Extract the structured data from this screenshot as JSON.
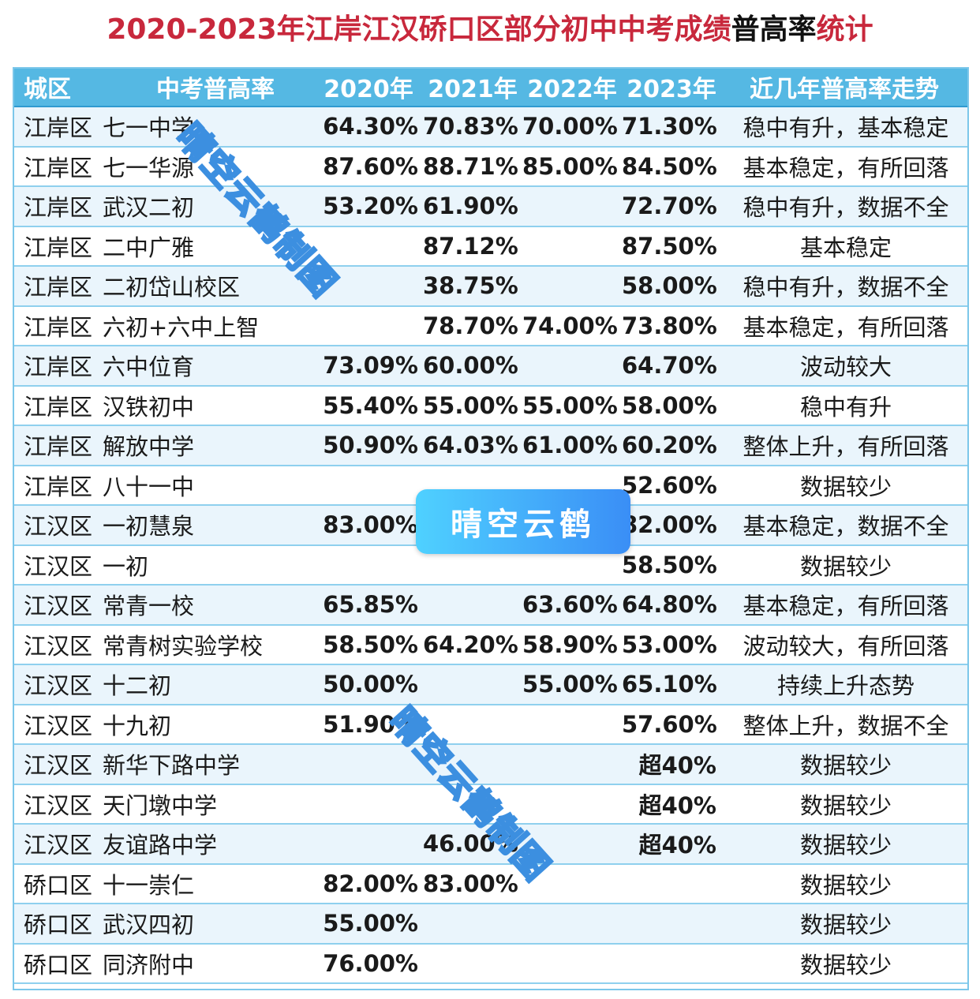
{
  "title": {
    "part1": "2020-2023年江岸江汉硚口区部分初中中考成绩",
    "part2": "普高率",
    "part3": "统计"
  },
  "headers": {
    "district": "城区",
    "school": "中考普高率",
    "y2020": "2020年",
    "y2021": "2021年",
    "y2022": "2022年",
    "y2023": "2023年",
    "trend": "近几年普高率走势"
  },
  "rows": [
    {
      "district": "江岸区",
      "school": "七一中学",
      "y2020": "64.30%",
      "y2021": "70.83%",
      "y2022": "70.00%",
      "y2023": "71.30%",
      "trend": "稳中有升，基本稳定"
    },
    {
      "district": "江岸区",
      "school": "七一华源",
      "y2020": "87.60%",
      "y2021": "88.71%",
      "y2022": "85.00%",
      "y2023": "84.50%",
      "trend": "基本稳定，有所回落"
    },
    {
      "district": "江岸区",
      "school": "武汉二初",
      "y2020": "53.20%",
      "y2021": "61.90%",
      "y2022": "",
      "y2023": "72.70%",
      "trend": "稳中有升，数据不全"
    },
    {
      "district": "江岸区",
      "school": "二中广雅",
      "y2020": "",
      "y2021": "87.12%",
      "y2022": "",
      "y2023": "87.50%",
      "trend": "基本稳定"
    },
    {
      "district": "江岸区",
      "school": "二初岱山校区",
      "y2020": "",
      "y2021": "38.75%",
      "y2022": "",
      "y2023": "58.00%",
      "trend": "稳中有升，数据不全"
    },
    {
      "district": "江岸区",
      "school": "六初+六中上智",
      "y2020": "",
      "y2021": "78.70%",
      "y2022": "74.00%",
      "y2023": "73.80%",
      "trend": "基本稳定，有所回落"
    },
    {
      "district": "江岸区",
      "school": "六中位育",
      "y2020": "73.09%",
      "y2021": "60.00%",
      "y2022": "",
      "y2023": "64.70%",
      "trend": "波动较大"
    },
    {
      "district": "江岸区",
      "school": "汉铁初中",
      "y2020": "55.40%",
      "y2021": "55.00%",
      "y2022": "55.00%",
      "y2023": "58.00%",
      "trend": "稳中有升"
    },
    {
      "district": "江岸区",
      "school": "解放中学",
      "y2020": "50.90%",
      "y2021": "64.03%",
      "y2022": "61.00%",
      "y2023": "60.20%",
      "trend": "整体上升，有所回落"
    },
    {
      "district": "江岸区",
      "school": "八十一中",
      "y2020": "",
      "y2021": "",
      "y2022": "",
      "y2023": "52.60%",
      "trend": "数据较少"
    },
    {
      "district": "江汉区",
      "school": "一初慧泉",
      "y2020": "83.00%",
      "y2021": "",
      "y2022": "",
      "y2023": "82.00%",
      "trend": "基本稳定，数据不全"
    },
    {
      "district": "江汉区",
      "school": "一初",
      "y2020": "",
      "y2021": "",
      "y2022": "",
      "y2023": "58.50%",
      "trend": "数据较少"
    },
    {
      "district": "江汉区",
      "school": "常青一校",
      "y2020": "65.85%",
      "y2021": "",
      "y2022": "63.60%",
      "y2023": "64.80%",
      "trend": "基本稳定，有所回落"
    },
    {
      "district": "江汉区",
      "school": "常青树实验学校",
      "y2020": "58.50%",
      "y2021": "64.20%",
      "y2022": "58.90%",
      "y2023": "53.00%",
      "trend": "波动较大，有所回落"
    },
    {
      "district": "江汉区",
      "school": "十二初",
      "y2020": "50.00%",
      "y2021": "",
      "y2022": "55.00%",
      "y2023": "65.10%",
      "trend": "持续上升态势"
    },
    {
      "district": "江汉区",
      "school": "十九初",
      "y2020": "51.90%",
      "y2021": "",
      "y2022": "",
      "y2023": "57.60%",
      "trend": "整体上升，数据不全"
    },
    {
      "district": "江汉区",
      "school": "新华下路中学",
      "y2020": "",
      "y2021": "",
      "y2022": "",
      "y2023": "超40%",
      "trend": "数据较少"
    },
    {
      "district": "江汉区",
      "school": "天门墩中学",
      "y2020": "",
      "y2021": "",
      "y2022": "",
      "y2023": "超40%",
      "trend": "数据较少"
    },
    {
      "district": "江汉区",
      "school": "友谊路中学",
      "y2020": "",
      "y2021": "46.00%",
      "y2022": "",
      "y2023": "超40%",
      "trend": "数据较少"
    },
    {
      "district": "硚口区",
      "school": "十一崇仁",
      "y2020": "82.00%",
      "y2021": "83.00%",
      "y2022": "",
      "y2023": "",
      "trend": "数据较少"
    },
    {
      "district": "硚口区",
      "school": "武汉四初",
      "y2020": "55.00%",
      "y2021": "",
      "y2022": "",
      "y2023": "",
      "trend": "数据较少"
    },
    {
      "district": "硚口区",
      "school": "同济附中",
      "y2020": "76.00%",
      "y2021": "",
      "y2022": "",
      "y2023": "",
      "trend": "数据较少"
    }
  ],
  "watermark": {
    "badge": "晴空云鹤",
    "diagonal": "晴空云鹤制图"
  },
  "colors": {
    "title_red": "#c8283c",
    "header_bg": "#55b8e3",
    "row_alt_bg": "#eaf5fc",
    "grid_line": "#8fd0ee"
  }
}
